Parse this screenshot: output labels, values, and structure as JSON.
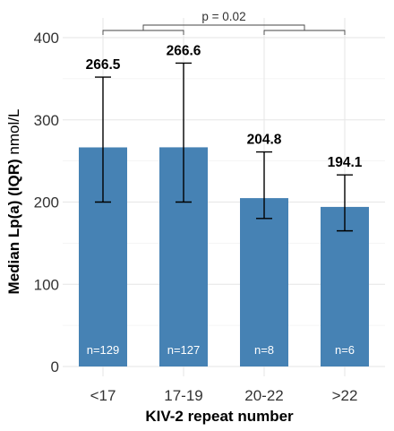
{
  "chart_data": {
    "type": "bar",
    "xlabel": "KIV-2 repeat number",
    "ylabel": "Median Lp(a) (IQR)",
    "ylabel_unit": "nmol/L",
    "categories": [
      "<17",
      "17-19",
      "20-22",
      ">22"
    ],
    "values": [
      266.5,
      266.6,
      204.8,
      194.1
    ],
    "value_labels": [
      "266.5",
      "266.6",
      "204.8",
      "194.1"
    ],
    "iqr_lower": [
      200,
      200,
      180,
      165
    ],
    "iqr_upper": [
      352,
      369,
      261,
      233
    ],
    "n_labels": [
      "n=129",
      "n=127",
      "n=8",
      "n=6"
    ],
    "ylim": [
      0,
      420
    ],
    "yticks": [
      0,
      100,
      200,
      300,
      400
    ],
    "ytick_labels": [
      "0",
      "100",
      "200",
      "300",
      "400"
    ],
    "grid": true,
    "bar_color": "#4682b4",
    "annotation": {
      "text": "p = 0.02",
      "groups": [
        [
          0,
          1
        ],
        [
          2,
          3
        ]
      ]
    }
  }
}
